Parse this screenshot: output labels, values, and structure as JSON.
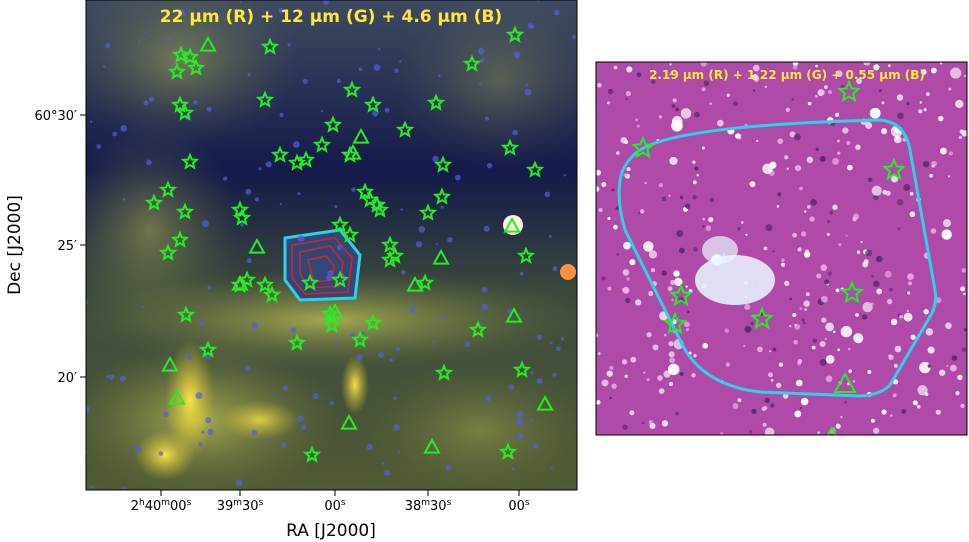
{
  "left_panel": {
    "title": "22 μm (R) + 12 μm (G) + 4.6 μm (B)",
    "y_axis": {
      "label": "Dec [J2000]",
      "ticks": [
        "60°30′",
        "25′",
        "20′"
      ]
    },
    "x_axis": {
      "label": "RA [J2000]",
      "ticks": [
        {
          "parts": [
            "2",
            "h",
            "40",
            "m",
            "00",
            "s"
          ]
        },
        {
          "parts": [
            "39",
            "m",
            "30",
            "s"
          ]
        },
        {
          "parts": [
            "00",
            "s"
          ]
        },
        {
          "parts": [
            "38",
            "m",
            "30",
            "s"
          ]
        },
        {
          "parts": [
            "00",
            "s"
          ]
        }
      ]
    }
  },
  "right_panel": {
    "title": "2.19 μm (R) + 1.22 μm (G) + 0.55 μm (B)"
  }
}
